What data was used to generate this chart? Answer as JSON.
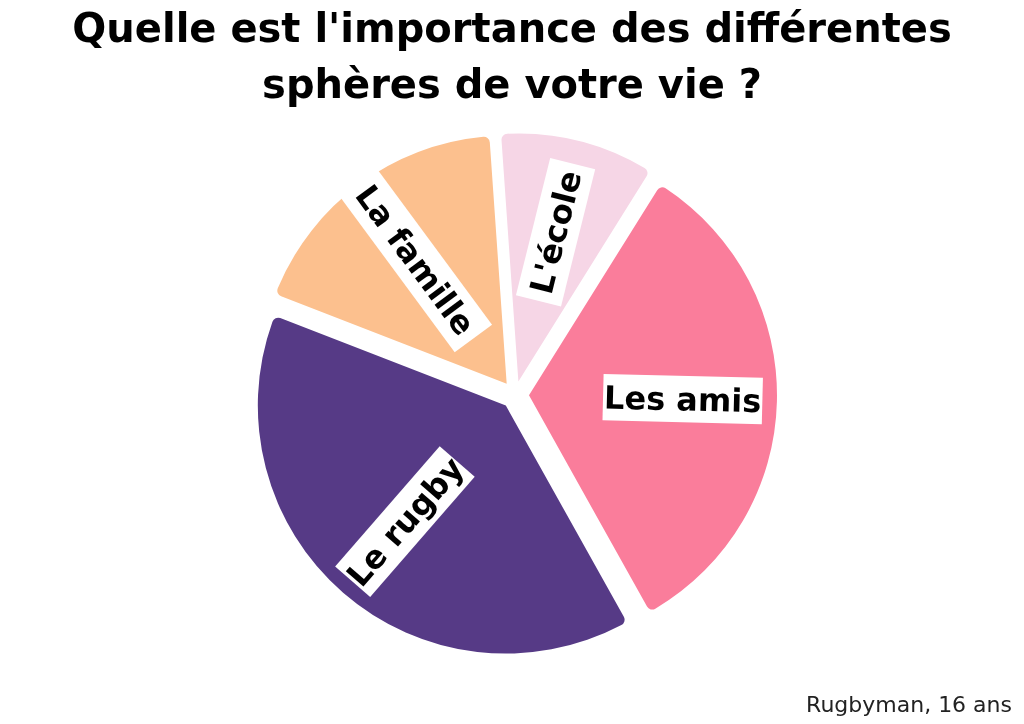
{
  "chart_data": {
    "type": "pie",
    "title": "Quelle est l'importance des différentes sphères de votre vie ?",
    "categories": [
      "L'école",
      "Les amis",
      "Le rugby",
      "La famille"
    ],
    "values": [
      10,
      33,
      39,
      18
    ],
    "colors": [
      "#f6d6e6",
      "#fa7d9b",
      "#563a86",
      "#fcc08e"
    ],
    "annotations": [
      "Rugbyman, 16 ans"
    ]
  }
}
